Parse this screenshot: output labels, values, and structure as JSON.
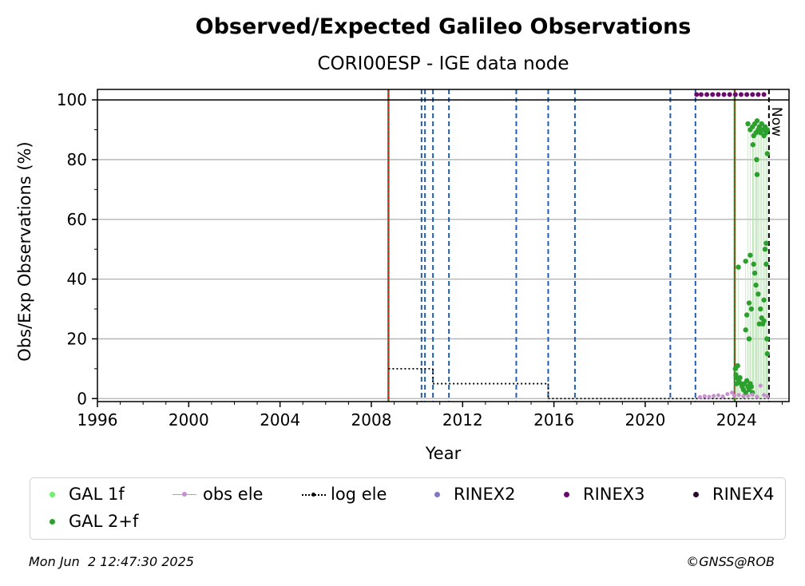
{
  "chart_data": {
    "type": "scatter",
    "title": "Observed/Expected Galileo Observations",
    "subtitle": "CORI00ESP - IGE data node",
    "xlabel": "Year",
    "ylabel": "Obs/Exp Observations (%)",
    "xlim": [
      1996,
      2026.3
    ],
    "ylim": [
      -1,
      103.5
    ],
    "xticks": [
      1996,
      2000,
      2004,
      2008,
      2012,
      2016,
      2020,
      2024
    ],
    "yticks": [
      0,
      20,
      40,
      60,
      80,
      100
    ],
    "grid": "horizontal",
    "reference_line": 100,
    "now_label": "Now",
    "now_x": 2025.42,
    "red_green_lines": [
      2008.75,
      2023.92
    ],
    "blue_dashed_lines": [
      2010.2,
      2010.35,
      2010.7,
      2011.4,
      2014.35,
      2015.75,
      2016.92,
      2021.1,
      2022.2
    ],
    "log_ele_steps": [
      {
        "x_start": 2008.75,
        "x_end": 2010.7,
        "y": 10
      },
      {
        "x_start": 2010.7,
        "x_end": 2015.75,
        "y": 5
      },
      {
        "x_start": 2015.75,
        "x_end": 2025.42,
        "y": 0
      }
    ],
    "series": [
      {
        "name": "GAL 2+f",
        "color": "#2ca02c",
        "points": [
          [
            2023.95,
            10
          ],
          [
            2023.97,
            8
          ],
          [
            2023.98,
            7
          ],
          [
            2024.0,
            5
          ],
          [
            2024.05,
            11
          ],
          [
            2024.1,
            6
          ],
          [
            2024.15,
            7
          ],
          [
            2024.2,
            5
          ],
          [
            2024.25,
            4
          ],
          [
            2024.3,
            3
          ],
          [
            2024.35,
            5
          ],
          [
            2024.4,
            2
          ],
          [
            2024.45,
            6
          ],
          [
            2024.5,
            4
          ],
          [
            2024.55,
            3
          ],
          [
            2024.6,
            5
          ],
          [
            2024.65,
            4
          ],
          [
            2024.7,
            2
          ],
          [
            2024.08,
            44
          ],
          [
            2024.4,
            46
          ],
          [
            2024.6,
            48
          ],
          [
            2024.75,
            45
          ],
          [
            2024.5,
            92
          ],
          [
            2024.6,
            90
          ],
          [
            2024.7,
            91
          ],
          [
            2024.75,
            88
          ],
          [
            2024.8,
            92
          ],
          [
            2024.85,
            89
          ],
          [
            2024.9,
            93
          ],
          [
            2024.95,
            90
          ],
          [
            2025.0,
            91
          ],
          [
            2025.05,
            89
          ],
          [
            2025.1,
            92
          ],
          [
            2025.15,
            90
          ],
          [
            2025.2,
            88
          ],
          [
            2025.25,
            91
          ],
          [
            2025.3,
            89
          ],
          [
            2025.35,
            90
          ],
          [
            2024.72,
            85
          ],
          [
            2024.88,
            80
          ],
          [
            2024.9,
            75
          ],
          [
            2025.35,
            82
          ],
          [
            2024.45,
            28
          ],
          [
            2024.55,
            32
          ],
          [
            2024.65,
            30
          ],
          [
            2024.8,
            42
          ],
          [
            2024.85,
            38
          ],
          [
            2024.95,
            35
          ],
          [
            2025.05,
            30
          ],
          [
            2025.1,
            27
          ],
          [
            2025.15,
            25
          ],
          [
            2025.2,
            33
          ],
          [
            2025.25,
            50
          ],
          [
            2025.3,
            45
          ],
          [
            2025.33,
            20
          ],
          [
            2025.35,
            15
          ],
          [
            2024.4,
            23
          ],
          [
            2024.55,
            20
          ],
          [
            2025.0,
            25
          ],
          [
            2025.2,
            26
          ],
          [
            2025.3,
            52
          ]
        ]
      },
      {
        "name": "obs ele",
        "color": "#c88fd0",
        "points": [
          [
            2022.4,
            0.5
          ],
          [
            2022.6,
            0.8
          ],
          [
            2022.8,
            0.6
          ],
          [
            2023.0,
            0.9
          ],
          [
            2023.2,
            1.1
          ],
          [
            2023.4,
            0.7
          ],
          [
            2023.6,
            1.5
          ],
          [
            2023.8,
            2.0
          ],
          [
            2023.9,
            1.0
          ],
          [
            2024.1,
            1.2
          ],
          [
            2024.3,
            0.8
          ],
          [
            2024.5,
            0.9
          ],
          [
            2024.7,
            1.3
          ],
          [
            2024.9,
            0.6
          ],
          [
            2025.05,
            4.3
          ],
          [
            2025.2,
            1.2
          ],
          [
            2025.35,
            0.7
          ]
        ]
      },
      {
        "name": "RINEX3",
        "color": "#6a0a6a",
        "points": [
          [
            2022.25,
            101.8
          ],
          [
            2022.45,
            101.8
          ],
          [
            2022.7,
            101.8
          ],
          [
            2022.95,
            101.8
          ],
          [
            2023.2,
            101.8
          ],
          [
            2023.45,
            101.8
          ],
          [
            2023.7,
            101.8
          ],
          [
            2023.95,
            101.8
          ],
          [
            2024.2,
            101.8
          ],
          [
            2024.45,
            101.8
          ],
          [
            2024.7,
            101.8
          ],
          [
            2024.95,
            101.8
          ],
          [
            2025.2,
            101.8
          ]
        ]
      }
    ]
  },
  "legend": {
    "items": [
      {
        "label": "GAL 1f",
        "color": "#6ef06e",
        "kind": "dot"
      },
      {
        "label": "obs ele",
        "color": "#c88fd0",
        "kind": "line-dot"
      },
      {
        "label": "log ele",
        "color": "#000000",
        "kind": "dotted-line"
      },
      {
        "label": "RINEX2",
        "color": "#8477c0",
        "kind": "dot"
      },
      {
        "label": "RINEX3",
        "color": "#6a0a6a",
        "kind": "dot"
      },
      {
        "label": "RINEX4",
        "color": "#2a0a2a",
        "kind": "dot"
      },
      {
        "label": "GAL 2+f",
        "color": "#2ca02c",
        "kind": "dot"
      }
    ]
  },
  "footer": {
    "timestamp": "Mon Jun  2 12:47:30 2025",
    "credit": "©GNSS@ROB"
  }
}
